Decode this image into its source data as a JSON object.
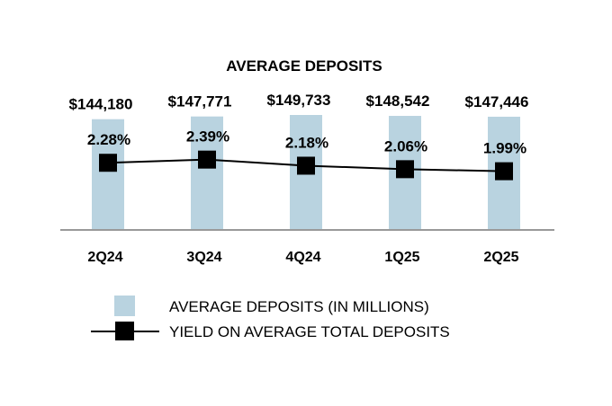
{
  "chart_data": {
    "type": "bar+line",
    "title": "AVERAGE DEPOSITS",
    "categories": [
      "2Q24",
      "3Q24",
      "4Q24",
      "1Q25",
      "2Q25"
    ],
    "series": [
      {
        "name": "AVERAGE DEPOSITS (IN MILLIONS)",
        "kind": "bar",
        "values": [
          144180,
          147771,
          149733,
          148542,
          147446
        ],
        "labels": [
          "$144,180",
          "$147,771",
          "$149,733",
          "$148,542",
          "$147,446"
        ],
        "color": "#b9d3e0"
      },
      {
        "name": "YIELD ON AVERAGE TOTAL DEPOSITS",
        "kind": "line",
        "values": [
          2.28,
          2.39,
          2.18,
          2.06,
          1.99
        ],
        "labels": [
          "2.28%",
          "2.39%",
          "2.18%",
          "2.06%",
          "1.99%"
        ],
        "color": "#000000"
      }
    ],
    "bar_axis": {
      "min": 0,
      "max": 149733
    },
    "line_axis": {
      "min": 0,
      "max": 3.4
    },
    "legend_position": "bottom",
    "axis_color": "#999999"
  }
}
